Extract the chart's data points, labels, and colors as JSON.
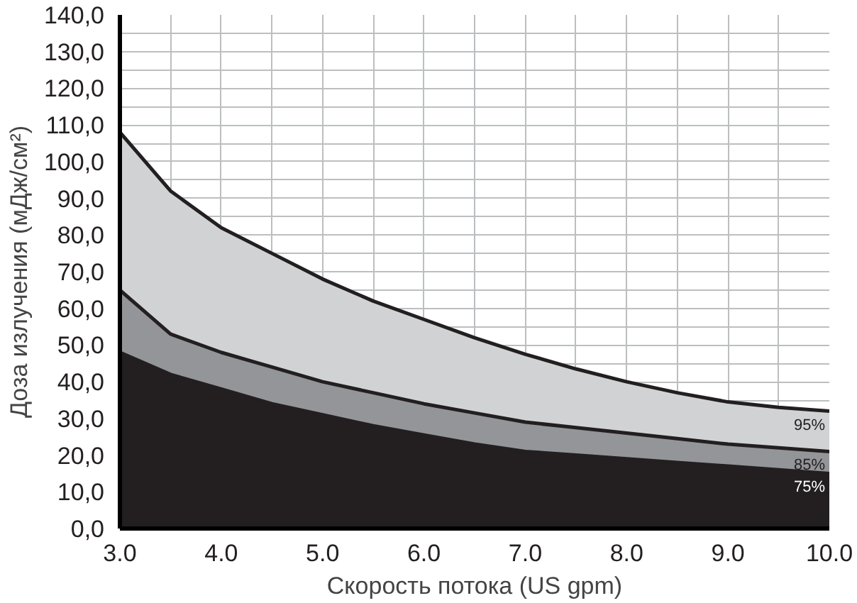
{
  "chart_data": {
    "type": "area",
    "xlabel": "Скорость потока (US gpm)",
    "ylabel": "Доза излучения (мДж/см²)",
    "x": [
      3.0,
      3.5,
      4.0,
      4.5,
      5.0,
      5.5,
      6.0,
      6.5,
      7.0,
      7.5,
      8.0,
      8.5,
      9.0,
      9.5,
      10.0
    ],
    "series": [
      {
        "name": "95%",
        "color": "#d1d2d4",
        "values": [
          108,
          92,
          82,
          75,
          68,
          62,
          57,
          52,
          47.5,
          43.5,
          40,
          37,
          34.5,
          33,
          32
        ]
      },
      {
        "name": "85%",
        "color": "#939598",
        "values": [
          65,
          53,
          48,
          44,
          40,
          37,
          34,
          31.5,
          29,
          27.5,
          26,
          24.5,
          23,
          22,
          21
        ]
      },
      {
        "name": "75%",
        "color": "#231f20",
        "values": [
          48,
          42,
          38,
          34,
          31,
          28,
          25.5,
          23,
          21,
          20,
          19,
          18,
          17,
          16,
          15
        ]
      }
    ],
    "xlim": [
      3.0,
      10.0
    ],
    "ylim": [
      0,
      140
    ],
    "xticks": [
      {
        "value": 3.0,
        "label": "3.0"
      },
      {
        "value": 3.5,
        "label": null
      },
      {
        "value": 4.0,
        "label": "4.0"
      },
      {
        "value": 4.5,
        "label": null
      },
      {
        "value": 5.0,
        "label": "5.0"
      },
      {
        "value": 5.5,
        "label": null
      },
      {
        "value": 6.0,
        "label": "6.0"
      },
      {
        "value": 6.5,
        "label": null
      },
      {
        "value": 7.0,
        "label": "7.0"
      },
      {
        "value": 7.5,
        "label": null
      },
      {
        "value": 8.0,
        "label": "8.0"
      },
      {
        "value": 8.5,
        "label": null
      },
      {
        "value": 9.0,
        "label": "9.0"
      },
      {
        "value": 9.5,
        "label": null
      },
      {
        "value": 10.0,
        "label": "10.0"
      }
    ],
    "yticks": [
      {
        "value": 0,
        "label": "0,0"
      },
      {
        "value": 10,
        "label": "10,0"
      },
      {
        "value": 20,
        "label": "20,0"
      },
      {
        "value": 25,
        "label": null
      },
      {
        "value": 30,
        "label": "30,0"
      },
      {
        "value": 35,
        "label": null
      },
      {
        "value": 40,
        "label": "40,0"
      },
      {
        "value": 45,
        "label": null
      },
      {
        "value": 50,
        "label": "50,0"
      },
      {
        "value": 55,
        "label": null
      },
      {
        "value": 60,
        "label": "60,0"
      },
      {
        "value": 65,
        "label": null
      },
      {
        "value": 70,
        "label": "70,0"
      },
      {
        "value": 75,
        "label": null
      },
      {
        "value": 80,
        "label": "80,0"
      },
      {
        "value": 85,
        "label": null
      },
      {
        "value": 90,
        "label": "90,0"
      },
      {
        "value": 95,
        "label": null
      },
      {
        "value": 100,
        "label": "100,0"
      },
      {
        "value": 105,
        "label": null
      },
      {
        "value": 110,
        "label": "110,0"
      },
      {
        "value": 115,
        "label": null
      },
      {
        "value": 120,
        "label": "120,0"
      },
      {
        "value": 125,
        "label": null
      },
      {
        "value": 130,
        "label": "130,0"
      },
      {
        "value": 135,
        "label": null
      },
      {
        "value": 140,
        "label": "140,0"
      }
    ],
    "grid": true,
    "line_style": "solid"
  }
}
